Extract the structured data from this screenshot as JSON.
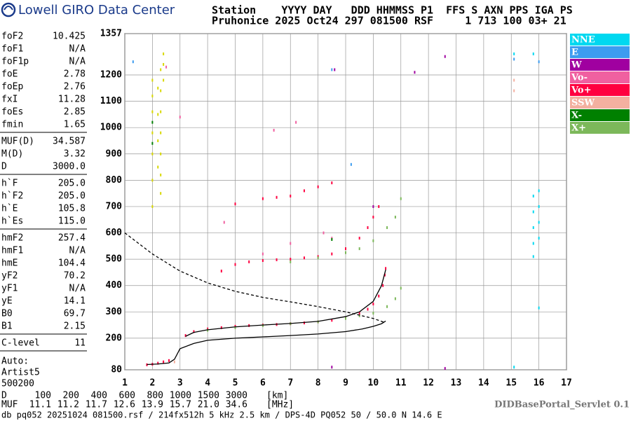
{
  "header": {
    "logo_text": "Lowell GIRO Data Center",
    "station_header": "Station    YYYY DAY   DDD HHMMSS P1  FFS S AXN PPS IGA PS",
    "station_values": "Pruhonice 2025 Oct24 297 081500 RSF     1 713 100 03+ 21"
  },
  "parameters": [
    [
      [
        "foF2",
        "10.425"
      ],
      [
        "foF1",
        "N/A"
      ],
      [
        "foF1p",
        "N/A"
      ],
      [
        "foE",
        "2.78"
      ],
      [
        "foEp",
        "2.76"
      ],
      [
        "fxI",
        "11.28"
      ],
      [
        "foEs",
        "2.85"
      ],
      [
        "fmin",
        "1.65"
      ]
    ],
    [
      [
        "MUF(D)",
        "34.587"
      ],
      [
        "M(D)",
        "3.32"
      ],
      [
        "D",
        "3000.0"
      ]
    ],
    [
      [
        "h`F",
        "205.0"
      ],
      [
        "h`F2",
        "205.0"
      ],
      [
        "h`E",
        "105.8"
      ],
      [
        "h`Es",
        "115.0"
      ]
    ],
    [
      [
        "hmF2",
        "257.4"
      ],
      [
        "hmF1",
        "N/A"
      ],
      [
        "hmE",
        "104.4"
      ],
      [
        "yF2",
        "70.2"
      ],
      [
        "yF1",
        "N/A"
      ],
      [
        "yE",
        "14.1"
      ],
      [
        "B0",
        "69.7"
      ],
      [
        "B1",
        "2.15"
      ]
    ],
    [
      [
        "C-level",
        "11"
      ]
    ]
  ],
  "autoscaling": [
    "Auto:",
    "Artist5",
    "500200"
  ],
  "chart_data": {
    "type": "scatter",
    "xlim": [
      1,
      17
    ],
    "ylim": [
      80,
      1357
    ],
    "xticks": [
      1,
      2,
      3,
      4,
      5,
      6,
      7,
      8,
      9,
      10,
      11,
      12,
      13,
      14,
      15,
      16,
      17
    ],
    "yticks": [
      80,
      200,
      300,
      400,
      500,
      600,
      700,
      800,
      900,
      1000,
      1100,
      1200,
      1357
    ],
    "grid": true,
    "series": [
      {
        "name": "NNE",
        "color": "#00d8f0",
        "x": [
          15.8,
          15.8,
          15.8,
          15.8,
          15.8,
          16.0,
          16.0,
          16.0,
          16.0,
          15.1,
          15.8,
          16.0,
          15.1
        ],
        "values": [
          740,
          680,
          620,
          560,
          510,
          760,
          700,
          640,
          580,
          1280,
          1280,
          315,
          90
        ]
      },
      {
        "name": "E",
        "color": "#3c9cf0",
        "x": [
          15.1,
          16.0,
          8.5,
          1.3,
          9.2
        ],
        "values": [
          1260,
          1250,
          1220,
          1250,
          860
        ]
      },
      {
        "name": "W",
        "color": "#a000a0",
        "x": [
          12.6,
          12.6,
          11.5,
          8.5,
          10.0,
          8.6
        ],
        "values": [
          1270,
          85,
          1210,
          90,
          700,
          1220
        ]
      },
      {
        "name": "Vo-",
        "color": "#f060a0",
        "x": [
          2.5,
          3.0,
          4.6,
          6.4,
          7.2,
          8.5,
          8.2,
          6.0,
          7.0
        ],
        "values": [
          1230,
          1040,
          640,
          990,
          1020,
          580,
          600,
          520,
          560
        ]
      },
      {
        "name": "Vo+",
        "color": "#ff0040",
        "x": [
          1.8,
          2.0,
          2.2,
          2.4,
          2.6,
          3.2,
          3.5,
          4,
          4.5,
          5,
          5.5,
          6,
          6.5,
          7,
          7.5,
          8,
          8.5,
          9,
          9.5,
          9.8,
          10.0,
          10.2,
          10.35,
          10.42,
          10.45,
          4.5,
          5,
          5.5,
          6,
          6.5,
          7,
          7.5,
          8,
          8.5,
          9,
          9.5,
          9.8,
          10.0,
          10.2,
          5,
          6,
          6.5,
          7,
          7.5,
          8,
          8.5
        ],
        "values": [
          99,
          101,
          105,
          110,
          115,
          210,
          225,
          235,
          240,
          245,
          248,
          250,
          252,
          255,
          258,
          262,
          268,
          278,
          295,
          310,
          330,
          360,
          400,
          440,
          465,
          455,
          480,
          490,
          495,
          498,
          500,
          505,
          510,
          520,
          540,
          580,
          620,
          660,
          700,
          710,
          730,
          735,
          740,
          760,
          775,
          790
        ]
      },
      {
        "name": "SSW",
        "color": "#f4b0a0",
        "x": [
          15.1,
          15.1,
          2.8
        ],
        "values": [
          1180,
          1140,
          110
        ]
      },
      {
        "name": "X-",
        "color": "#008000",
        "x": [
          2.0,
          2.0,
          8.5
        ],
        "values": [
          940,
          1020,
          575
        ]
      },
      {
        "name": "X+",
        "color": "#7cb85a",
        "x": [
          4,
          5,
          6,
          7,
          8,
          9,
          9.5,
          10,
          10.5,
          10.8,
          11.0,
          7,
          8,
          9,
          9.5,
          10,
          10.5,
          10.8,
          11.0
        ],
        "values": [
          230,
          240,
          248,
          255,
          262,
          275,
          285,
          295,
          320,
          350,
          390,
          490,
          505,
          525,
          540,
          570,
          620,
          660,
          730
        ]
      },
      {
        "color": "#d8d800",
        "x": [
          2.0,
          2.0,
          2.0,
          2.0,
          2.0,
          2.0,
          2.0,
          2.2,
          2.2,
          2.2,
          2.2,
          2.3,
          2.3,
          2.3,
          2.3,
          2.3,
          2.3,
          2.3,
          2.4,
          2.4,
          2.4
        ],
        "values": [
          700,
          800,
          900,
          980,
          1060,
          1120,
          1180,
          850,
          950,
          1050,
          1150,
          750,
          820,
          900,
          980,
          1060,
          1140,
          1220,
          1180,
          1240,
          1280
        ]
      },
      {
        "color": "#000000",
        "style": "line",
        "x": [
          1.8,
          2.2,
          2.6,
          2.8,
          3,
          3.5,
          4,
          5,
          6,
          7,
          8,
          9,
          9.6,
          10.0,
          10.3,
          10.45
        ],
        "values": [
          100,
          102,
          106,
          120,
          160,
          180,
          192,
          200,
          205,
          210,
          216,
          225,
          235,
          245,
          255,
          265
        ]
      },
      {
        "color": "#000000",
        "style": "line",
        "x": [
          3.2,
          3.5,
          4,
          5,
          6,
          7,
          8,
          9,
          9.5,
          10,
          10.3,
          10.45
        ],
        "values": [
          207,
          222,
          232,
          243,
          250,
          256,
          264,
          282,
          300,
          340,
          400,
          460
        ]
      },
      {
        "color": "#000000",
        "style": "dashed",
        "x": [
          1,
          2,
          3,
          4,
          5,
          6,
          7,
          8,
          9,
          10,
          10.4
        ],
        "values": [
          600,
          520,
          455,
          410,
          378,
          355,
          338,
          320,
          300,
          275,
          260
        ]
      }
    ]
  },
  "d_scale": {
    "label": "D",
    "values": [
      "100",
      "200",
      "400",
      "600",
      "800",
      "1000",
      "1500",
      "3000"
    ],
    "unit": "[km]"
  },
  "muf_scale": {
    "label": "MUF",
    "values": [
      "11.1",
      "11.2",
      "11.7",
      "12.6",
      "13.9",
      "15.7",
      "21.0",
      "34.6"
    ],
    "unit": "[MHz]"
  },
  "footer": "db pq052 20251024 081500.rsf / 214fx512h 5 kHz 2.5 km / DPS-4D PQ052 50 / 50.0 N 14.6 E",
  "servlet": "DIDBasePortal_Servlet 0.1"
}
